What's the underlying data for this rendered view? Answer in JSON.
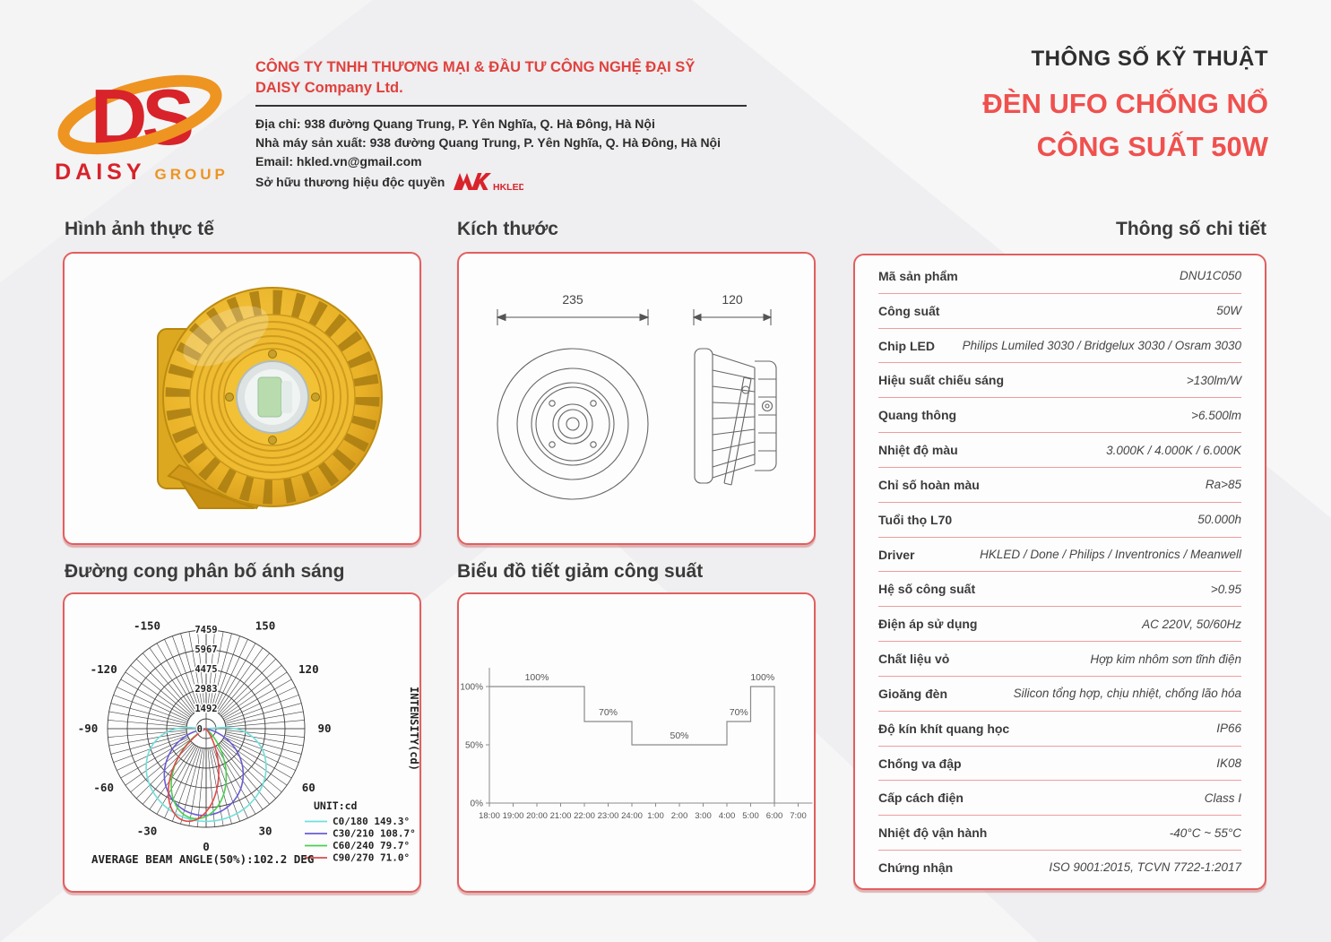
{
  "header": {
    "logo": {
      "monogram": "DS",
      "daisy": "DAISY",
      "group": "GROUP",
      "red": "#d8232a",
      "orange": "#ee9421"
    },
    "company": {
      "name_vi": "CÔNG TY TNHH THƯƠNG MẠI & ĐẦU TƯ CÔNG NGHỆ ĐẠI SỸ",
      "name_en": "DAISY Company Ltd.",
      "address": "Địa chỉ: 938 đường Quang Trung, P. Yên Nghĩa, Q. Hà Đông, Hà Nội",
      "factory": "Nhà máy sản xuất: 938 đường Quang Trung, P. Yên Nghĩa, Q. Hà Đông, Hà Nội",
      "email": "Email: hkled.vn@gmail.com",
      "trademark": "Sở hữu thương hiệu độc quyền",
      "trademark_logo": "HKLED"
    },
    "title": {
      "line1": "THÔNG SỐ KỸ THUẬT",
      "line2": "ĐÈN UFO CHỐNG NỔ",
      "line3": "CÔNG SUẤT 50W",
      "accent_color": "#ef514e"
    }
  },
  "sections": {
    "photo": {
      "heading": "Hình ảnh thực tế"
    },
    "dimensions": {
      "heading": "Kích thước",
      "front_width": "235",
      "side_width": "120"
    },
    "polar": {
      "heading": "Đường cong phân bố ánh sáng"
    },
    "derating": {
      "heading": "Biểu đồ tiết giảm công suất"
    },
    "specs": {
      "heading": "Thông số chi tiết"
    }
  },
  "specs_table": {
    "rows": [
      {
        "label": "Mã sản phẩm",
        "value": "DNU1C050"
      },
      {
        "label": "Công suất",
        "value": "50W"
      },
      {
        "label": "Chip LED",
        "value": "Philips Lumiled 3030 / Bridgelux 3030 / Osram 3030"
      },
      {
        "label": "Hiệu suất chiếu sáng",
        "value": ">130lm/W"
      },
      {
        "label": "Quang thông",
        "value": ">6.500lm"
      },
      {
        "label": "Nhiệt độ màu",
        "value": "3.000K / 4.000K / 6.000K"
      },
      {
        "label": "Chỉ số hoàn màu",
        "value": "Ra>85"
      },
      {
        "label": "Tuổi thọ L70",
        "value": "50.000h"
      },
      {
        "label": "Driver",
        "value": "HKLED / Done / Philips / Inventronics / Meanwell"
      },
      {
        "label": "Hệ số công suất",
        "value": ">0.95"
      },
      {
        "label": "Điện áp sử dụng",
        "value": "AC 220V, 50/60Hz"
      },
      {
        "label": "Chất liệu vỏ",
        "value": "Hợp kim nhôm sơn tĩnh điện"
      },
      {
        "label": "Gioăng đèn",
        "value": "Silicon tổng hợp, chịu nhiệt, chống lão hóa"
      },
      {
        "label": "Độ kín khít quang học",
        "value": "IP66"
      },
      {
        "label": "Chống va đập",
        "value": "IK08"
      },
      {
        "label": "Cấp cách điện",
        "value": "Class I"
      },
      {
        "label": "Nhiệt độ vận hành",
        "value": "-40°C ~ 55°C"
      },
      {
        "label": "Chứng nhận",
        "value": "ISO 9001:2015, TCVN 7722-1:2017"
      }
    ]
  },
  "chart_data": [
    {
      "type": "line",
      "subtype": "polar-distribution",
      "title": "Đường cong phân bố ánh sáng",
      "unit_label": "UNIT:cd",
      "axis_label": "INTENSITY(cd)",
      "r_ticks": [
        0,
        1492,
        2983,
        4475,
        5967,
        7459
      ],
      "r_max": 7459,
      "angle_ticks": [
        -150,
        -120,
        -90,
        -60,
        -30,
        0,
        30,
        60,
        90,
        120,
        150
      ],
      "series": [
        {
          "name": "C0/180 149.3°",
          "beam_angle": 149.3,
          "color": "#6fe0da",
          "theta_max": 96,
          "exp": 0.5,
          "peak": 0.94,
          "tilt": 0
        },
        {
          "name": "C30/210 108.7°",
          "beam_angle": 108.7,
          "color": "#6a5bd4",
          "theta_max": 80,
          "exp": 1.0,
          "peak": 0.88,
          "tilt": -3
        },
        {
          "name": "C60/240 79.7°",
          "beam_angle": 79.7,
          "color": "#49cf4f",
          "theta_max": 58,
          "exp": 1.4,
          "peak": 0.92,
          "tilt": -8
        },
        {
          "name": "C90/270 71.0°",
          "beam_angle": 71.0,
          "color": "#e04848",
          "theta_max": 53,
          "exp": 1.7,
          "peak": 0.96,
          "tilt": -13
        }
      ],
      "average_beam_angle_deg": 102.2,
      "footer": "AVERAGE BEAM ANGLE(50%):102.2 DEG",
      "grid": true,
      "legend_position": "bottom-right"
    },
    {
      "type": "line",
      "subtype": "step-derating",
      "title": "Biểu đồ tiết giảm công suất",
      "x_ticks": [
        "18:00",
        "19:00",
        "20:00",
        "21:00",
        "22:00",
        "23:00",
        "24:00",
        "1:00",
        "2:00",
        "3:00",
        "4:00",
        "5:00",
        "6:00",
        "7:00"
      ],
      "y_ticks": [
        {
          "label": "0%",
          "value": 0
        },
        {
          "label": "50%",
          "value": 50
        },
        {
          "label": "100%",
          "value": 100
        }
      ],
      "ylim": [
        0,
        100
      ],
      "segments": [
        {
          "from": 0,
          "to": 4,
          "percent": 100,
          "label": "100%"
        },
        {
          "from": 4,
          "to": 6,
          "percent": 70,
          "label": "70%"
        },
        {
          "from": 6,
          "to": 10,
          "percent": 50,
          "label": "50%"
        },
        {
          "from": 10,
          "to": 11,
          "percent": 70,
          "label": "70%"
        },
        {
          "from": 11,
          "to": 12,
          "percent": 100,
          "label": "100%"
        }
      ],
      "drop_to_zero_index": 12,
      "line_color": "#8a8a8a"
    }
  ]
}
